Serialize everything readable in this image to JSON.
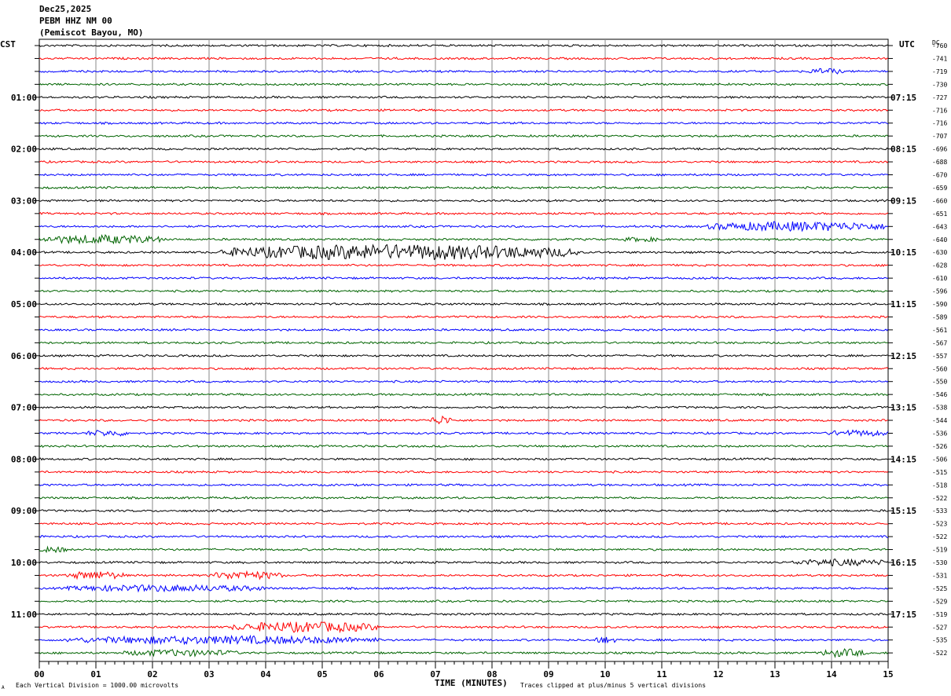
{
  "header": {
    "date": "Dec25,2025",
    "station": "PEBM HHZ NM 00",
    "location": "(Pemiscot Bayou, MO)"
  },
  "left_zone_label": "CST",
  "right_zone_label": "UTC",
  "dc_label": "DC",
  "footer": {
    "scale_note": "Each Vertical Division = 1000.00 microvolts",
    "xlabel": "TIME (MINUTES)",
    "clip_note": "Traces clipped at plus/minus 5 vertical divisions",
    "corner_mark": "A"
  },
  "chart_data": {
    "type": "line",
    "title": "PEBM HHZ NM 00",
    "xlabel": "TIME (MINUTES)",
    "x_ticks": [
      "00",
      "01",
      "02",
      "03",
      "04",
      "05",
      "06",
      "07",
      "08",
      "09",
      "10",
      "11",
      "12",
      "13",
      "14",
      "15"
    ],
    "xlim": [
      0,
      15
    ],
    "grid": true,
    "trace_colors": [
      "#000000",
      "#ff0000",
      "#0000ff",
      "#006400"
    ],
    "left_hour_labels": [
      "01:00",
      "02:00",
      "03:00",
      "04:00",
      "05:00",
      "06:00",
      "07:00",
      "08:00",
      "09:00",
      "10:00",
      "11:00"
    ],
    "right_hour_labels": [
      "07:15",
      "08:15",
      "09:15",
      "10:15",
      "11:15",
      "12:15",
      "13:15",
      "14:15",
      "15:15",
      "16:15",
      "17:15"
    ],
    "dc_offsets": [
      "-760",
      "-741",
      "-719",
      "-730",
      "-727",
      "-716",
      "-716",
      "-707",
      "-696",
      "-688",
      "-670",
      "-659",
      "-660",
      "-651",
      "-643",
      "-640",
      "-630",
      "-628",
      "-610",
      "-596",
      "-590",
      "-589",
      "-561",
      "-567",
      "-557",
      "-560",
      "-550",
      "-546",
      "-538",
      "-544",
      "-536",
      "-526",
      "-506",
      "-515",
      "-518",
      "-522",
      "-533",
      "-523",
      "-522",
      "-519",
      "-530",
      "-531",
      "-525",
      "-529",
      "-519",
      "-527",
      "-535",
      "-522"
    ],
    "events": [
      {
        "trace": 14,
        "start_min": 11.8,
        "end_min": 15.0,
        "amplitude": 0.55
      },
      {
        "trace": 15,
        "start_min": 0.0,
        "end_min": 2.2,
        "amplitude": 0.5
      },
      {
        "trace": 15,
        "start_min": 10.3,
        "end_min": 11.0,
        "amplitude": 0.2
      },
      {
        "trace": 16,
        "start_min": 3.2,
        "end_min": 9.5,
        "amplitude": 0.95
      },
      {
        "trace": 2,
        "start_min": 13.6,
        "end_min": 14.2,
        "amplitude": 0.3
      },
      {
        "trace": 29,
        "start_min": 6.9,
        "end_min": 7.3,
        "amplitude": 0.5
      },
      {
        "trace": 30,
        "start_min": 0.8,
        "end_min": 1.6,
        "amplitude": 0.3
      },
      {
        "trace": 30,
        "start_min": 13.9,
        "end_min": 15.0,
        "amplitude": 0.3
      },
      {
        "trace": 39,
        "start_min": 0.0,
        "end_min": 0.5,
        "amplitude": 0.3
      },
      {
        "trace": 40,
        "start_min": 13.3,
        "end_min": 15.0,
        "amplitude": 0.35
      },
      {
        "trace": 41,
        "start_min": 0.5,
        "end_min": 1.5,
        "amplitude": 0.45
      },
      {
        "trace": 41,
        "start_min": 3.0,
        "end_min": 4.3,
        "amplitude": 0.45
      },
      {
        "trace": 42,
        "start_min": 0.5,
        "end_min": 4.0,
        "amplitude": 0.35
      },
      {
        "trace": 45,
        "start_min": 3.4,
        "end_min": 6.0,
        "amplitude": 0.6
      },
      {
        "trace": 46,
        "start_min": 0.5,
        "end_min": 6.0,
        "amplitude": 0.45
      },
      {
        "trace": 46,
        "start_min": 9.8,
        "end_min": 10.2,
        "amplitude": 0.35
      },
      {
        "trace": 47,
        "start_min": 1.5,
        "end_min": 3.5,
        "amplitude": 0.35
      },
      {
        "trace": 47,
        "start_min": 13.8,
        "end_min": 14.6,
        "amplitude": 0.45
      }
    ]
  }
}
